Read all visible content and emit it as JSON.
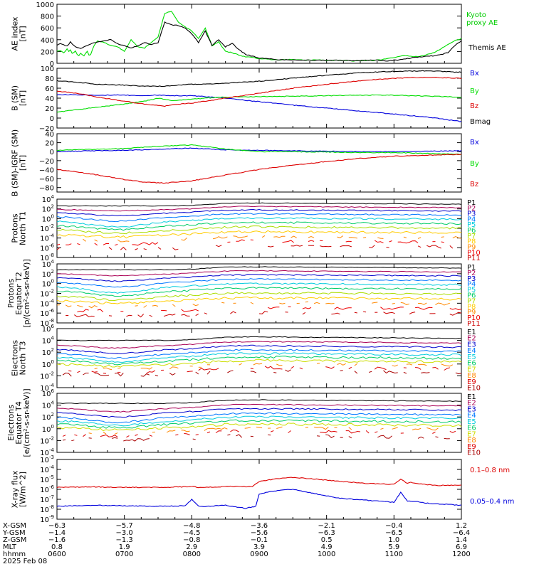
{
  "chart_data": [
    {
      "type": "line",
      "panel": "ae",
      "ylabel": [
        "AE index",
        "[nT]"
      ],
      "ylim": [
        0,
        1000
      ],
      "yticks": [
        0,
        200,
        400,
        600,
        800,
        1000
      ],
      "series": [
        {
          "name": "Kyoto proxy AE",
          "color": "#00dd00",
          "x": [
            0.0,
            0.05,
            0.1,
            0.15,
            0.17,
            0.2,
            0.23,
            0.25,
            0.28,
            0.3,
            0.33,
            0.35,
            0.38,
            0.4,
            0.42,
            0.45,
            0.47,
            0.5,
            0.55,
            0.6,
            0.7,
            0.8,
            0.9,
            1.0,
            1.1,
            1.2,
            1.3,
            1.4,
            1.5,
            1.6,
            1.7,
            1.8,
            1.9,
            2.0,
            2.1,
            2.2,
            2.3,
            2.4,
            2.5,
            2.6,
            2.7,
            2.8,
            2.9,
            3.0,
            3.1,
            3.2,
            3.3,
            3.4,
            3.5,
            3.6,
            3.7,
            3.8,
            3.9,
            4.0,
            4.1,
            4.2,
            4.3,
            4.4,
            4.5,
            4.6,
            4.7,
            4.8,
            4.9,
            5.0,
            5.1,
            5.2,
            5.3,
            5.4,
            5.5,
            5.6,
            5.7,
            5.8,
            5.9,
            6.0
          ],
          "values": [
            210,
            220,
            180,
            240,
            200,
            230,
            150,
            180,
            210,
            150,
            130,
            170,
            140,
            120,
            160,
            200,
            130,
            150,
            300,
            380,
            350,
            300,
            280,
            200,
            400,
            280,
            260,
            350,
            450,
            850,
            880,
            700,
            620,
            550,
            420,
            600,
            300,
            360,
            200,
            180,
            140,
            110,
            100,
            80,
            80,
            60,
            60,
            60,
            70,
            60,
            55,
            55,
            60,
            50,
            50,
            50,
            50,
            40,
            45,
            50,
            50,
            60,
            80,
            100,
            120,
            130,
            110,
            120,
            150,
            180,
            250,
            320,
            380,
            420
          ]
        },
        {
          "name": "Themis AE",
          "color": "#000000",
          "x": [
            0.0,
            0.05,
            0.1,
            0.15,
            0.2,
            0.25,
            0.3,
            0.35,
            0.4,
            0.45,
            0.5,
            0.6,
            0.7,
            0.8,
            0.9,
            1.0,
            1.1,
            1.2,
            1.3,
            1.4,
            1.5,
            1.6,
            1.7,
            1.8,
            1.9,
            2.0,
            2.1,
            2.2,
            2.3,
            2.4,
            2.5,
            2.6,
            2.7,
            2.8,
            2.9,
            3.0,
            3.1,
            3.2,
            3.3,
            3.4,
            3.5,
            3.6,
            3.7,
            3.8,
            3.9,
            4.0,
            4.1,
            4.2,
            4.3,
            4.4,
            4.5,
            4.6,
            4.7,
            4.8,
            4.9,
            5.0,
            5.1,
            5.2,
            5.3,
            5.4,
            5.5,
            5.6,
            5.7,
            5.8,
            5.9,
            6.0
          ],
          "values": [
            300,
            340,
            310,
            290,
            360,
            300,
            270,
            250,
            280,
            300,
            330,
            360,
            380,
            400,
            330,
            300,
            260,
            300,
            350,
            320,
            350,
            700,
            650,
            640,
            600,
            500,
            350,
            550,
            300,
            400,
            280,
            340,
            230,
            150,
            120,
            90,
            80,
            70,
            60,
            60,
            60,
            55,
            55,
            50,
            50,
            50,
            50,
            50,
            50,
            45,
            50,
            50,
            55,
            50,
            40,
            50,
            60,
            80,
            100,
            110,
            120,
            130,
            150,
            180,
            300,
            380
          ]
        }
      ]
    },
    {
      "type": "line",
      "panel": "bsm",
      "ylabel": [
        "B (SM)",
        "[nT]"
      ],
      "ylim": [
        -20,
        100
      ],
      "yticks": [
        -20,
        0,
        20,
        40,
        60,
        80,
        100
      ],
      "series": [
        {
          "name": "Bx",
          "color": "#0000dd",
          "x": [
            0.0,
            0.3,
            0.6,
            1.0,
            1.2,
            1.5,
            1.8,
            2.0,
            2.2,
            2.5,
            3.0,
            3.5,
            4.0,
            4.5,
            5.0,
            5.5,
            6.0
          ],
          "values": [
            47,
            47,
            46,
            46,
            45,
            46,
            45,
            45,
            43,
            40,
            33,
            26,
            20,
            14,
            8,
            2,
            -7
          ]
        },
        {
          "name": "By",
          "color": "#00dd00",
          "x": [
            0.0,
            0.3,
            0.6,
            1.0,
            1.3,
            1.5,
            1.7,
            2.0,
            2.2,
            2.5,
            3.0,
            3.5,
            4.0,
            4.5,
            5.0,
            5.5,
            6.0
          ],
          "values": [
            12,
            17,
            22,
            28,
            34,
            40,
            35,
            38,
            40,
            42,
            43,
            44,
            45,
            46,
            46,
            44,
            42
          ]
        },
        {
          "name": "Bz",
          "color": "#dd0000",
          "x": [
            0.0,
            0.3,
            0.6,
            1.0,
            1.3,
            1.6,
            1.8,
            2.0,
            2.2,
            2.5,
            3.0,
            3.5,
            4.0,
            4.5,
            5.0,
            5.5,
            6.0
          ],
          "values": [
            54,
            50,
            42,
            34,
            28,
            24,
            28,
            30,
            34,
            40,
            50,
            60,
            68,
            75,
            80,
            82,
            80
          ]
        },
        {
          "name": "Bmag",
          "color": "#000000",
          "x": [
            0.0,
            0.3,
            0.6,
            1.0,
            1.3,
            1.6,
            1.8,
            2.0,
            2.2,
            2.5,
            3.0,
            3.5,
            4.0,
            4.5,
            5.0,
            5.5,
            6.0
          ],
          "values": [
            75,
            72,
            68,
            66,
            64,
            64,
            66,
            68,
            68,
            70,
            74,
            80,
            86,
            91,
            94,
            95,
            92
          ]
        }
      ]
    },
    {
      "type": "line",
      "panel": "bresid",
      "ylabel": [
        "B (SM)-IGRF (SM)",
        "[nT]"
      ],
      "ylim": [
        -90,
        40
      ],
      "yticks": [
        -80,
        -60,
        -40,
        -20,
        0,
        20,
        40
      ],
      "series": [
        {
          "name": "Bx",
          "color": "#0000dd",
          "x": [
            0.0,
            0.5,
            1.0,
            1.5,
            2.0,
            2.5,
            3.0,
            3.5,
            4.0,
            4.5,
            5.0,
            5.5,
            6.0
          ],
          "values": [
            0,
            2,
            3,
            5,
            8,
            4,
            3,
            2,
            1,
            0,
            0,
            1,
            2
          ]
        },
        {
          "name": "By",
          "color": "#00dd00",
          "x": [
            0.0,
            0.5,
            1.0,
            1.5,
            2.0,
            2.5,
            3.0,
            3.5,
            4.0,
            4.5,
            5.0,
            5.5,
            6.0
          ],
          "values": [
            3,
            5,
            7,
            12,
            15,
            6,
            0,
            0,
            -1,
            -2,
            -2,
            -4,
            -6
          ]
        },
        {
          "name": "Bz",
          "color": "#dd0000",
          "x": [
            0.0,
            0.3,
            0.6,
            1.0,
            1.3,
            1.6,
            2.0,
            2.5,
            3.0,
            3.5,
            4.0,
            4.5,
            5.0,
            5.5,
            6.0
          ],
          "values": [
            -40,
            -45,
            -52,
            -62,
            -68,
            -70,
            -65,
            -52,
            -40,
            -30,
            -22,
            -15,
            -10,
            -8,
            -6
          ]
        }
      ]
    },
    {
      "type": "line",
      "panel": "protons_t1",
      "log": true,
      "ylabel": [
        "Protons",
        "North T1"
      ],
      "ylim": [
        -8,
        4
      ],
      "ytick_exponents": [
        -8,
        -6,
        -4,
        -2,
        0,
        2,
        4
      ],
      "categories": [
        "P1",
        "P2",
        "P3",
        "P4",
        "P5",
        "P6",
        "P7",
        "P8",
        "P9",
        "P10",
        "P11"
      ],
      "series_colors": [
        "#000000",
        "#aa0055",
        "#0000cc",
        "#0077ff",
        "#00ccdd",
        "#00cc66",
        "#aadd00",
        "#ffcc00",
        "#ff8800",
        "#ee0000",
        "#cc0000"
      ],
      "base_log": [
        2.6,
        1.9,
        1.2,
        0.4,
        -0.5,
        -1.4,
        -2.3,
        -3.3,
        -4.3,
        -5.2,
        -6.2
      ],
      "dip_log": [
        0.0,
        0.3,
        0.6,
        0.9,
        1.2,
        0.9,
        0.7,
        0.5,
        0.3,
        0.0,
        0.0
      ]
    },
    {
      "type": "line",
      "panel": "protons_t2",
      "log": true,
      "ylabel": [
        "Protons",
        "Equator T2",
        "[p/(cm²-s-sr-keV)]"
      ],
      "ylim": [
        -8,
        4
      ],
      "ytick_exponents": [
        -8,
        -6,
        -4,
        -2,
        0,
        2,
        4
      ],
      "categories": [
        "P1",
        "P2",
        "P3",
        "P4",
        "P5",
        "P6",
        "P7",
        "P8",
        "P9",
        "P10",
        "P11"
      ],
      "series_colors": [
        "#000000",
        "#aa0055",
        "#0000cc",
        "#0077ff",
        "#00ccdd",
        "#00cc66",
        "#aadd00",
        "#ffcc00",
        "#ff8800",
        "#ee0000",
        "#cc0000"
      ],
      "base_log": [
        2.8,
        2.0,
        1.2,
        0.3,
        -0.6,
        -1.5,
        -2.5,
        -3.5,
        -4.5,
        -5.5,
        -6.5
      ],
      "dip_log": [
        0.0,
        0.4,
        0.7,
        1.0,
        1.3,
        1.0,
        0.8,
        0.5,
        0.3,
        0.0,
        0.0
      ]
    },
    {
      "type": "line",
      "panel": "electrons_t3",
      "log": true,
      "ylabel": [
        "Electrons",
        "North T3"
      ],
      "ylim": [
        -4,
        6
      ],
      "ytick_exponents": [
        -4,
        -2,
        0,
        2,
        4,
        6
      ],
      "categories": [
        "E1",
        "E2",
        "E3",
        "E4",
        "E5",
        "E6",
        "E7",
        "E8",
        "E9",
        "E10"
      ],
      "series_colors": [
        "#000000",
        "#aa0055",
        "#0000cc",
        "#0077ff",
        "#00ccdd",
        "#00cc66",
        "#ccdd00",
        "#ff8800",
        "#dd0000",
        "#aa0000"
      ],
      "base_log": [
        4.0,
        3.2,
        2.5,
        1.8,
        1.2,
        0.6,
        0.0,
        -0.6,
        -1.2,
        -1.8
      ],
      "dip_log": [
        0.0,
        0.5,
        0.7,
        0.8,
        0.8,
        0.6,
        0.4,
        0.3,
        0.2,
        0.0
      ]
    },
    {
      "type": "line",
      "panel": "electrons_t4",
      "log": true,
      "ylabel": [
        "Electrons",
        "Equator T4",
        "[e/(cm²-s-sr-keV)]"
      ],
      "ylim": [
        -4,
        6
      ],
      "ytick_exponents": [
        -4,
        -2,
        0,
        2,
        4,
        6
      ],
      "categories": [
        "E1",
        "E2",
        "E3",
        "E4",
        "E5",
        "E6",
        "E7",
        "E8",
        "E9",
        "E10"
      ],
      "series_colors": [
        "#000000",
        "#aa0055",
        "#0000cc",
        "#0077ff",
        "#00ccdd",
        "#00cc66",
        "#ccdd00",
        "#ff8800",
        "#dd0000",
        "#aa0000"
      ],
      "base_log": [
        4.3,
        3.5,
        2.8,
        2.0,
        1.4,
        0.8,
        0.2,
        -0.4,
        -1.0,
        -1.8
      ],
      "dip_log": [
        0.0,
        0.6,
        0.8,
        0.9,
        0.8,
        0.6,
        0.4,
        0.3,
        0.2,
        0.0
      ]
    },
    {
      "type": "line",
      "panel": "xray",
      "log": true,
      "ylabel": [
        "X-ray flux",
        "[W/m^2]"
      ],
      "ylim": [
        -9,
        -3
      ],
      "ytick_exponents": [
        -9,
        -8,
        -7,
        -6,
        -5,
        -4,
        -3
      ],
      "series": [
        {
          "name": "0.1–0.8 nm",
          "color": "#dd0000",
          "x": [
            0.0,
            0.5,
            1.0,
            1.5,
            1.9,
            2.0,
            2.1,
            2.4,
            2.6,
            2.9,
            3.0,
            3.3,
            3.5,
            3.8,
            4.2,
            4.6,
            5.0,
            5.1,
            5.2,
            5.25,
            5.4,
            5.6,
            6.0
          ],
          "values": [
            -5.8,
            -5.75,
            -5.8,
            -5.8,
            -5.75,
            -5.7,
            -5.8,
            -5.75,
            -5.7,
            -5.75,
            -5.2,
            -4.9,
            -4.8,
            -4.95,
            -5.2,
            -5.4,
            -5.5,
            -5.0,
            -5.4,
            -5.3,
            -5.45,
            -5.6,
            -5.6
          ]
        },
        {
          "name": "0.05–0.4 nm",
          "color": "#0000dd",
          "x": [
            0.0,
            0.5,
            1.0,
            1.5,
            1.9,
            2.0,
            2.1,
            2.2,
            2.5,
            2.8,
            2.95,
            3.0,
            3.1,
            3.3,
            3.5,
            3.8,
            4.2,
            4.6,
            5.0,
            5.1,
            5.2,
            5.3,
            5.5,
            6.0
          ],
          "values": [
            -7.7,
            -7.6,
            -7.65,
            -7.7,
            -7.65,
            -7.0,
            -7.7,
            -7.7,
            -7.6,
            -7.9,
            -7.7,
            -6.5,
            -6.3,
            -6.1,
            -6.0,
            -6.4,
            -6.9,
            -7.1,
            -7.3,
            -6.3,
            -7.2,
            -7.2,
            -7.4,
            -7.6
          ]
        }
      ]
    }
  ],
  "xaxis": {
    "row_labels": [
      "X-GSM",
      "Y-GSM",
      "Z-GSM",
      "MLT",
      "hhmm",
      "2025 Feb 08"
    ],
    "columns": [
      {
        "x": 0,
        "xgsm": "-6.3",
        "ygsm": "-1.4",
        "zgsm": "-1.6",
        "mlt": "0.8",
        "hhmm": "0600"
      },
      {
        "x": 1,
        "xgsm": "-5.7",
        "ygsm": "-3.0",
        "zgsm": "-1.3",
        "mlt": "1.9",
        "hhmm": "0700"
      },
      {
        "x": 2,
        "xgsm": "-4.8",
        "ygsm": "-4.5",
        "zgsm": "-0.8",
        "mlt": "2.9",
        "hhmm": "0800"
      },
      {
        "x": 3,
        "xgsm": "-3.6",
        "ygsm": "-5.6",
        "zgsm": "-0.1",
        "mlt": "3.9",
        "hhmm": "0900"
      },
      {
        "x": 4,
        "xgsm": "-2.1",
        "ygsm": "-6.3",
        "zgsm": "0.5",
        "mlt": "4.9",
        "hhmm": "1000"
      },
      {
        "x": 5,
        "xgsm": "-0.4",
        "ygsm": "-6.5",
        "zgsm": "1.0",
        "mlt": "5.9",
        "hhmm": "1100"
      },
      {
        "x": 6,
        "xgsm": "1.2",
        "ygsm": "-6.4",
        "zgsm": "1.4",
        "mlt": "6.9",
        "hhmm": "1200"
      }
    ]
  }
}
